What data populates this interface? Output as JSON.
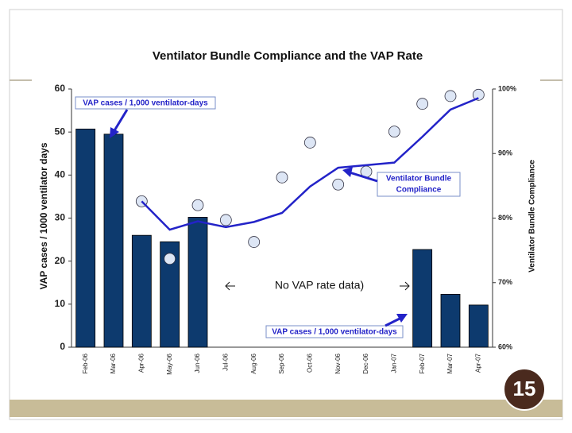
{
  "chart_data": {
    "type": "combo",
    "title": "Ventilator Bundle Compliance and the VAP Rate",
    "y_label": "VAP cases / 1000 ventilator days",
    "y2_label": "Ventilator Bundle Compliance",
    "categories": [
      "Feb-06",
      "Mar-06",
      "Apr-06",
      "May-06",
      "Jun-06",
      "Jul-06",
      "Aug-06",
      "Sep-06",
      "Oct-06",
      "Nov-06",
      "Dec-06",
      "Jan-07",
      "Feb-07",
      "Mar-07",
      "Apr-07"
    ],
    "series": [
      {
        "type": "bar",
        "color": "#0d3a6e",
        "values": [
          50.7,
          49.5,
          26,
          24.5,
          30.2,
          null,
          null,
          null,
          null,
          null,
          null,
          null,
          22.7,
          12.3,
          9.8
        ]
      },
      {
        "type": "scatter",
        "axis": "y2",
        "color": "#dde6f5",
        "values": [
          null,
          null,
          82.6,
          73.7,
          82,
          79.7,
          76.3,
          86.3,
          91.7,
          85.2,
          87.2,
          93.4,
          97.7,
          98.9,
          99.1
        ]
      },
      {
        "type": "line",
        "axis": "y2",
        "color": "#2323c8",
        "values": [
          null,
          null,
          82.6,
          78.2,
          79.5,
          78.6,
          79.4,
          80.8,
          84.9,
          87.8,
          88.2,
          88.6,
          92.6,
          96.8,
          98.6
        ]
      }
    ],
    "ylim": [
      0,
      60
    ],
    "yticks": [
      0,
      10,
      20,
      30,
      40,
      50,
      60
    ],
    "y2lim": [
      60,
      100
    ],
    "y2ticks": [
      {
        "value": 60,
        "label": "60%"
      },
      {
        "value": 70,
        "label": "70%"
      },
      {
        "value": 80,
        "label": "80%"
      },
      {
        "value": 90,
        "label": "90%"
      },
      {
        "value": 100,
        "label": "100%"
      }
    ],
    "annotations": {
      "vap_top": "VAP cases / 1,000 ventilator-days",
      "vap_bottom": "VAP cases / 1,000 ventilator-days",
      "compliance": [
        "Ventilator Bundle",
        "Compliance"
      ],
      "no_data": "No VAP rate data)"
    }
  },
  "slide_number": "15"
}
